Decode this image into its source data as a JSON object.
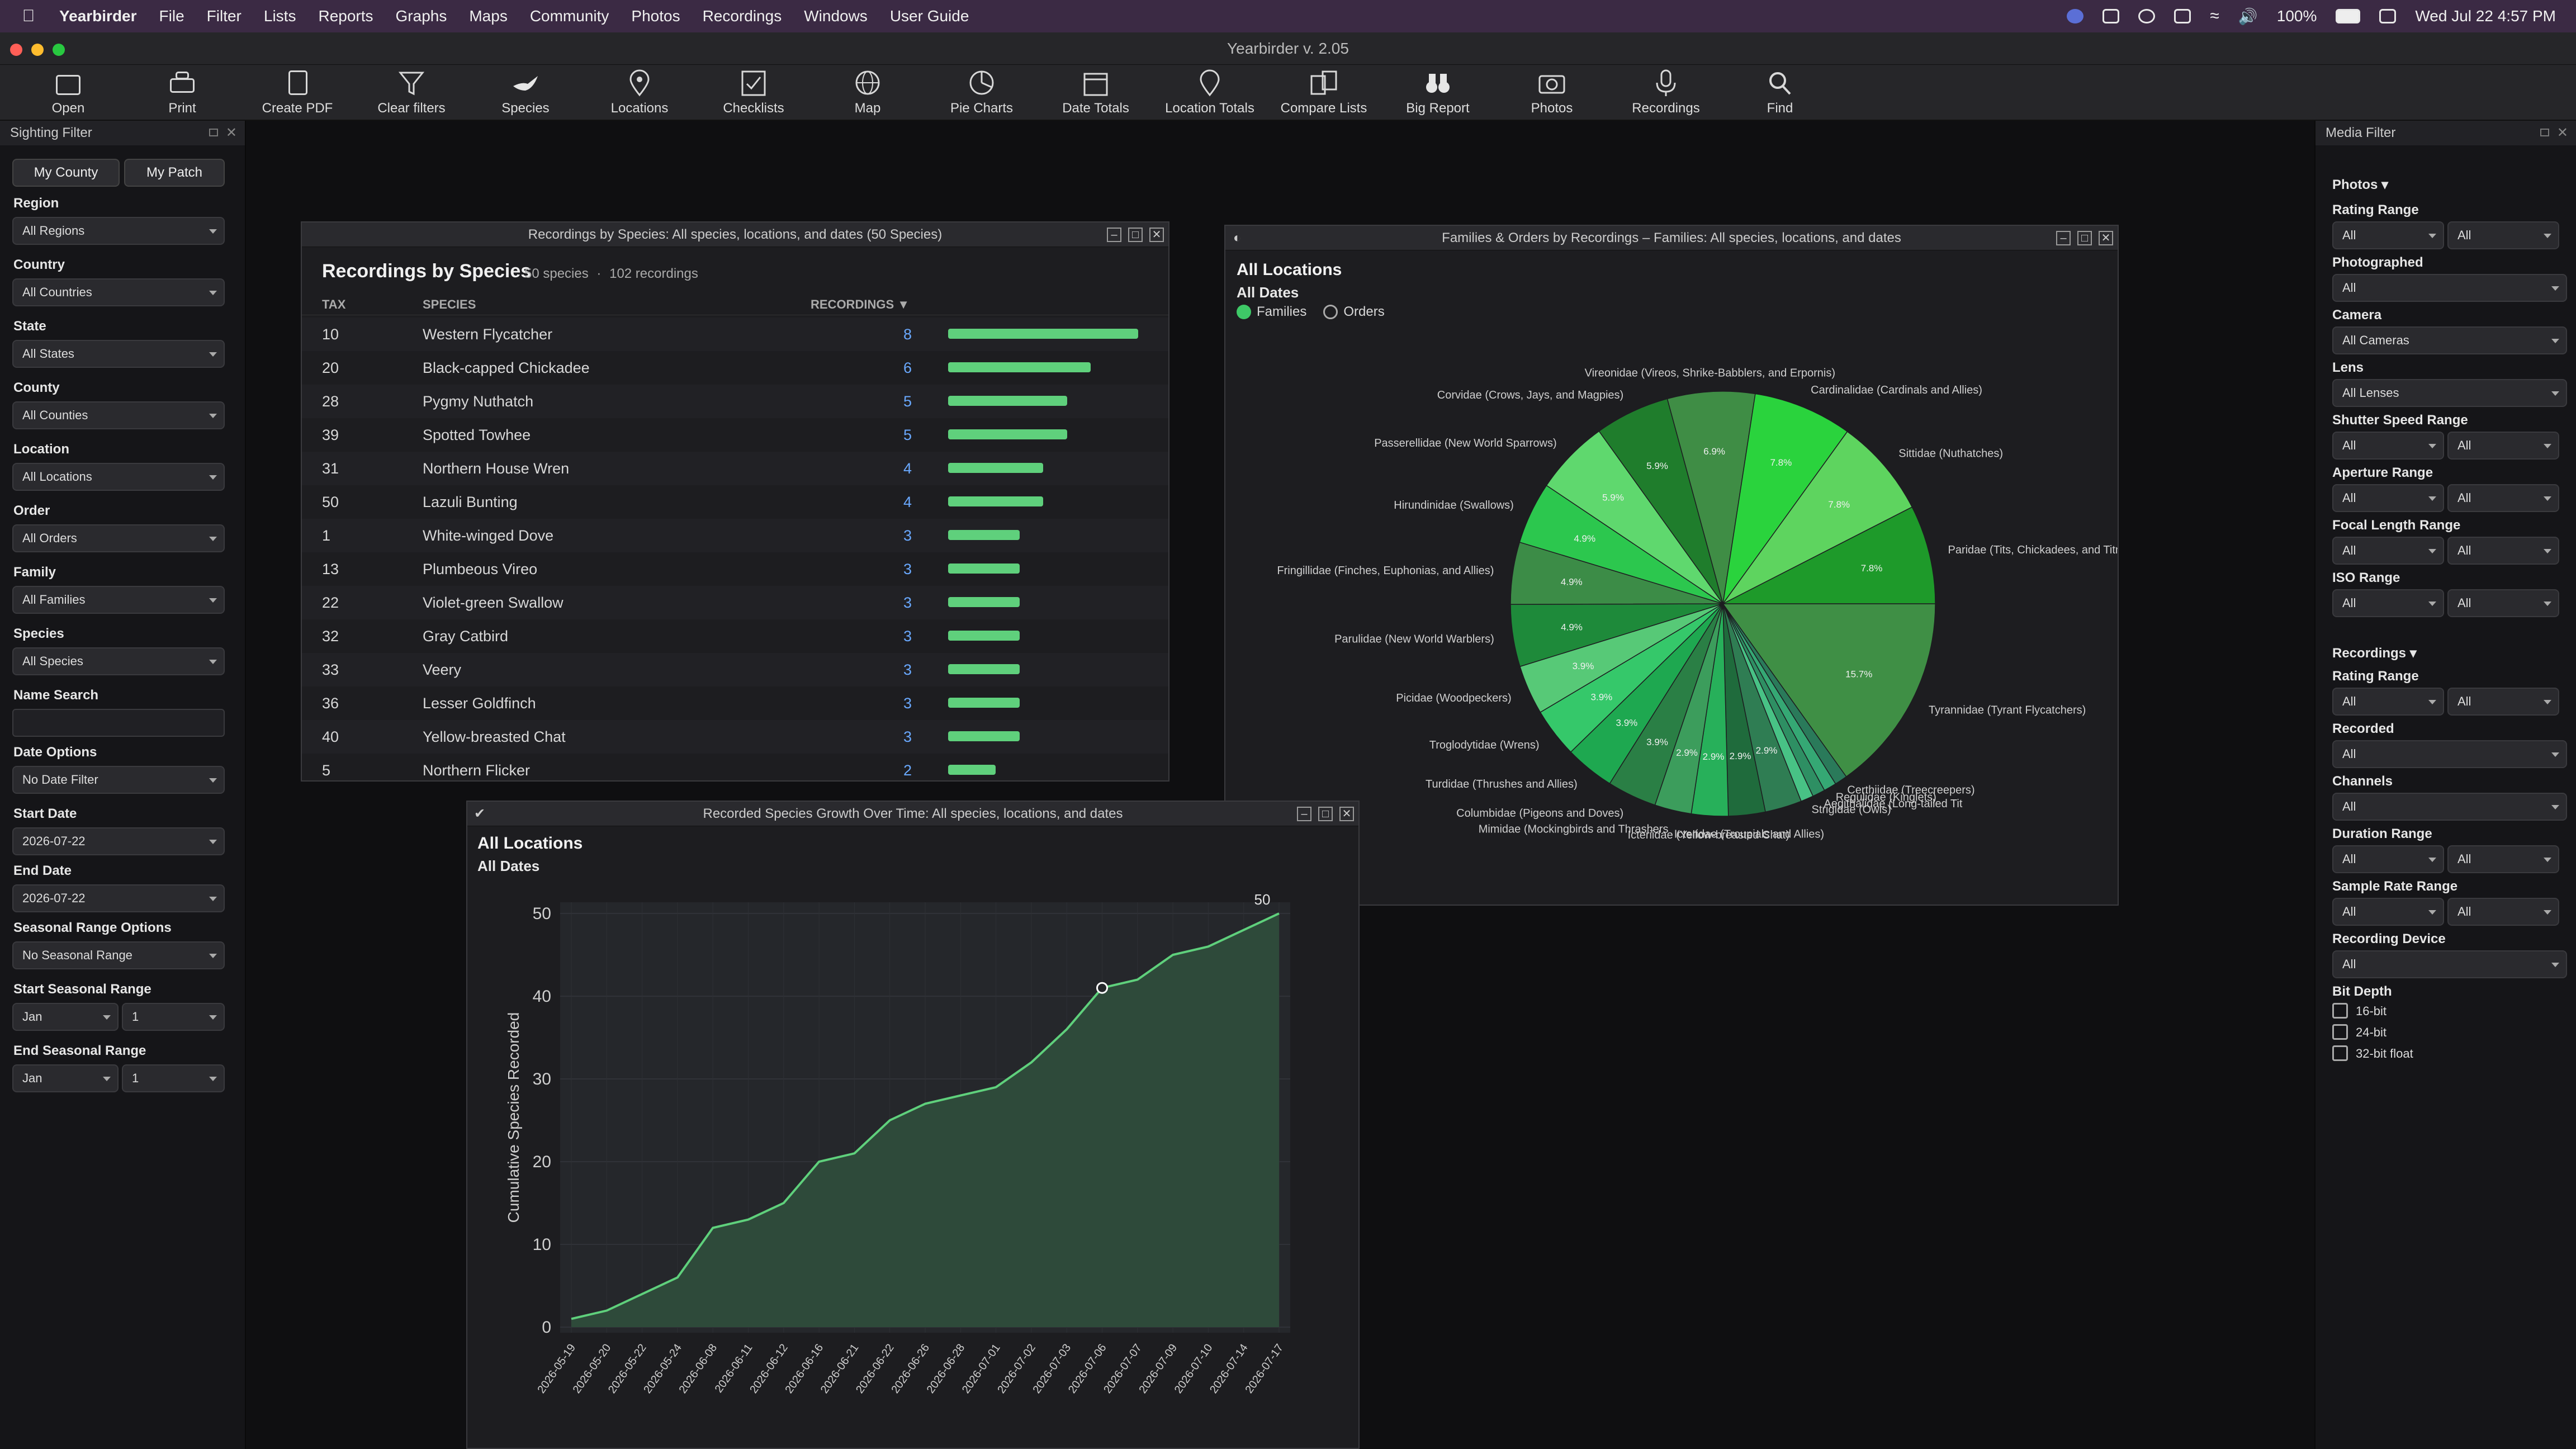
{
  "menubar": {
    "app": "Yearbirder",
    "items": [
      "File",
      "Filter",
      "Lists",
      "Reports",
      "Graphs",
      "Maps",
      "Community",
      "Photos",
      "Recordings",
      "Windows",
      "User Guide"
    ],
    "battery": "100%",
    "datetime": "Wed Jul 22  4:57 PM"
  },
  "window_title": "Yearbirder v. 2.05",
  "toolbar": [
    "Open",
    "Print",
    "Create PDF",
    "Clear filters",
    "Species",
    "Locations",
    "Checklists",
    "Map",
    "Pie Charts",
    "Date Totals",
    "Location Totals",
    "Compare Lists",
    "Big Report",
    "Photos",
    "Recordings",
    "Find"
  ],
  "sighting_filter": {
    "title": "Sighting Filter",
    "my_county": "My County",
    "my_patch": "My Patch",
    "fields": [
      {
        "label": "Region",
        "value": "All Regions"
      },
      {
        "label": "Country",
        "value": "All Countries"
      },
      {
        "label": "State",
        "value": "All States"
      },
      {
        "label": "County",
        "value": "All Counties"
      },
      {
        "label": "Location",
        "value": "All Locations"
      },
      {
        "label": "Order",
        "value": "All Orders"
      },
      {
        "label": "Family",
        "value": "All Families"
      },
      {
        "label": "Species",
        "value": "All Species"
      }
    ],
    "name_search": "Name Search",
    "date_options": {
      "label": "Date Options",
      "value": "No Date Filter"
    },
    "start_date": {
      "label": "Start Date",
      "value": "2026-07-22"
    },
    "end_date": {
      "label": "End Date",
      "value": "2026-07-22"
    },
    "seasonal": {
      "label": "Seasonal Range Options",
      "value": "No Seasonal Range"
    },
    "start_seasonal": {
      "label": "Start Seasonal Range",
      "month": "Jan",
      "day": "1"
    },
    "end_seasonal": {
      "label": "End Seasonal Range",
      "month": "Jan",
      "day": "1"
    }
  },
  "recordings_window": {
    "title": "Recordings by Species: All species, locations, and dates (50 Species)",
    "heading": "Recordings by Species",
    "species_count": "50 species",
    "recording_count": "102 recordings",
    "sep": "·",
    "columns": [
      "TAX",
      "SPECIES",
      "RECORDINGS ▼"
    ],
    "rows": [
      {
        "tax": "10",
        "species": "Western Flycatcher",
        "recs": 8
      },
      {
        "tax": "20",
        "species": "Black-capped Chickadee",
        "recs": 6
      },
      {
        "tax": "28",
        "species": "Pygmy Nuthatch",
        "recs": 5
      },
      {
        "tax": "39",
        "species": "Spotted Towhee",
        "recs": 5
      },
      {
        "tax": "31",
        "species": "Northern House Wren",
        "recs": 4
      },
      {
        "tax": "50",
        "species": "Lazuli Bunting",
        "recs": 4
      },
      {
        "tax": "1",
        "species": "White-winged Dove",
        "recs": 3
      },
      {
        "tax": "13",
        "species": "Plumbeous Vireo",
        "recs": 3
      },
      {
        "tax": "22",
        "species": "Violet-green Swallow",
        "recs": 3
      },
      {
        "tax": "32",
        "species": "Gray Catbird",
        "recs": 3
      },
      {
        "tax": "33",
        "species": "Veery",
        "recs": 3
      },
      {
        "tax": "36",
        "species": "Lesser Goldfinch",
        "recs": 3
      },
      {
        "tax": "40",
        "species": "Yellow-breasted Chat",
        "recs": 3
      },
      {
        "tax": "5",
        "species": "Northern Flicker",
        "recs": 2
      }
    ]
  },
  "pie_window": {
    "title": "Families & Orders by Recordings – Families: All species, locations, and dates",
    "loc": "All Locations",
    "dates": "All Dates",
    "opt_families": "Families",
    "opt_orders": "Orders"
  },
  "growth_window": {
    "title": "Recorded Species Growth Over Time: All species, locations, and dates",
    "loc": "All Locations",
    "dates": "All Dates"
  },
  "chart_data": [
    {
      "type": "pie",
      "slices": [
        {
          "label": "Tyrannidae (Tyrant Flycatchers)",
          "value": 15.7,
          "pct": "15.7%",
          "color": "#3f8f45"
        },
        {
          "label": "Certhiidae (Treecreepers)",
          "value": 1,
          "pct": "",
          "color": "#2a7a5a"
        },
        {
          "label": "Regulidae (Kinglets)",
          "value": 1,
          "pct": "",
          "color": "#35a874"
        },
        {
          "label": "Aegithalidae (Long-tailed Tit",
          "value": 1,
          "pct": "",
          "color": "#2e8f63"
        },
        {
          "label": "Strigidae (Owls)",
          "value": 1,
          "pct": "",
          "color": "#48c285"
        },
        {
          "label": "",
          "value": 2.9,
          "pct": "2.9%",
          "color": "#2f7d53"
        },
        {
          "label": "Icteridae (Troupials and Allies)",
          "value": 2.9,
          "pct": "2.9%",
          "color": "#1f6b3c"
        },
        {
          "label": "Icteriidae (Yellow-breasted Chat)",
          "value": 2.9,
          "pct": "2.9%",
          "color": "#27b05a"
        },
        {
          "label": "Mimidae (Mockingbirds and Thrashers",
          "value": 2.9,
          "pct": "2.9%",
          "color": "#3c9d5c"
        },
        {
          "label": "Columbidae (Pigeons and Doves)",
          "value": 3.9,
          "pct": "3.9%",
          "color": "#2a7f45"
        },
        {
          "label": "Turdidae (Thrushes and Allies)",
          "value": 3.9,
          "pct": "3.9%",
          "color": "#1ea850"
        },
        {
          "label": "Troglodytidae (Wrens)",
          "value": 3.9,
          "pct": "3.9%",
          "color": "#35c86a"
        },
        {
          "label": "Picidae (Woodpeckers)",
          "value": 3.9,
          "pct": "3.9%",
          "color": "#57c977"
        },
        {
          "label": "Parulidae (New World Warblers)",
          "value": 4.9,
          "pct": "4.9%",
          "color": "#1e8a3a"
        },
        {
          "label": "Fringillidae (Finches, Euphonias, and Allies)",
          "value": 4.9,
          "pct": "4.9%",
          "color": "#3c8c47"
        },
        {
          "label": "Hirundinidae (Swallows)",
          "value": 4.9,
          "pct": "4.9%",
          "color": "#2cc74e"
        },
        {
          "label": "Passerellidae (New World Sparrows)",
          "value": 5.9,
          "pct": "5.9%",
          "color": "#5fd86e"
        },
        {
          "label": "Corvidae (Crows, Jays, and Magpies)",
          "value": 5.9,
          "pct": "5.9%",
          "color": "#1f7d2c"
        },
        {
          "label": "Vireonidae (Vireos, Shrike-Babblers, and Erpornis)",
          "value": 6.9,
          "pct": "6.9%",
          "color": "#3f8d45"
        },
        {
          "label": "Cardinalidae (Cardinals and Allies)",
          "value": 7.8,
          "pct": "7.8%",
          "color": "#2ad33d"
        },
        {
          "label": "Sittidae (Nuthatches)",
          "value": 7.8,
          "pct": "7.8%",
          "color": "#5ed45f"
        },
        {
          "label": "Paridae (Tits, Chickadees, and Titmice)",
          "value": 7.8,
          "pct": "7.8%",
          "color": "#1e9a2a"
        }
      ]
    },
    {
      "type": "area",
      "ylabel": "Cumulative Species Recorded",
      "ylim": [
        0,
        50
      ],
      "yticks": [
        0,
        10,
        20,
        30,
        40,
        50
      ],
      "end_label": "50",
      "x": [
        "2026-05-19",
        "2026-05-20",
        "2026-05-22",
        "2026-05-24",
        "2026-06-08",
        "2026-06-11",
        "2026-06-12",
        "2026-06-16",
        "2026-06-21",
        "2026-06-22",
        "2026-06-26",
        "2026-06-28",
        "2026-07-01",
        "2026-07-02",
        "2026-07-03",
        "2026-07-06",
        "2026-07-07",
        "2026-07-09",
        "2026-07-10",
        "2026-07-14",
        "2026-07-17"
      ],
      "y": [
        1,
        2,
        4,
        6,
        12,
        13,
        15,
        20,
        21,
        25,
        27,
        28,
        29,
        32,
        36,
        41,
        42,
        45,
        46,
        48,
        50
      ],
      "highlight_index": 15
    }
  ],
  "media_filter": {
    "title": "Media Filter",
    "photos": "Photos ▾",
    "recordings": "Recordings ▾",
    "photo_fields": [
      {
        "label": "Rating Range",
        "a": "All",
        "b": "All"
      },
      {
        "label": "Photographed",
        "a": "All"
      },
      {
        "label": "Camera",
        "a": "All Cameras"
      },
      {
        "label": "Lens",
        "a": "All Lenses"
      },
      {
        "label": "Shutter Speed Range",
        "a": "All",
        "b": "All"
      },
      {
        "label": "Aperture Range",
        "a": "All",
        "b": "All"
      },
      {
        "label": "Focal Length Range",
        "a": "All",
        "b": "All"
      },
      {
        "label": "ISO Range",
        "a": "All",
        "b": "All"
      }
    ],
    "rec_fields": [
      {
        "label": "Rating Range",
        "a": "All",
        "b": "All"
      },
      {
        "label": "Recorded",
        "a": "All"
      },
      {
        "label": "Channels",
        "a": "All"
      },
      {
        "label": "Duration Range",
        "a": "All",
        "b": "All"
      },
      {
        "label": "Sample Rate Range",
        "a": "All",
        "b": "All"
      },
      {
        "label": "Recording Device",
        "a": "All"
      }
    ],
    "bit_depth": {
      "label": "Bit Depth",
      "options": [
        "16-bit",
        "24-bit",
        "32-bit float"
      ]
    }
  }
}
